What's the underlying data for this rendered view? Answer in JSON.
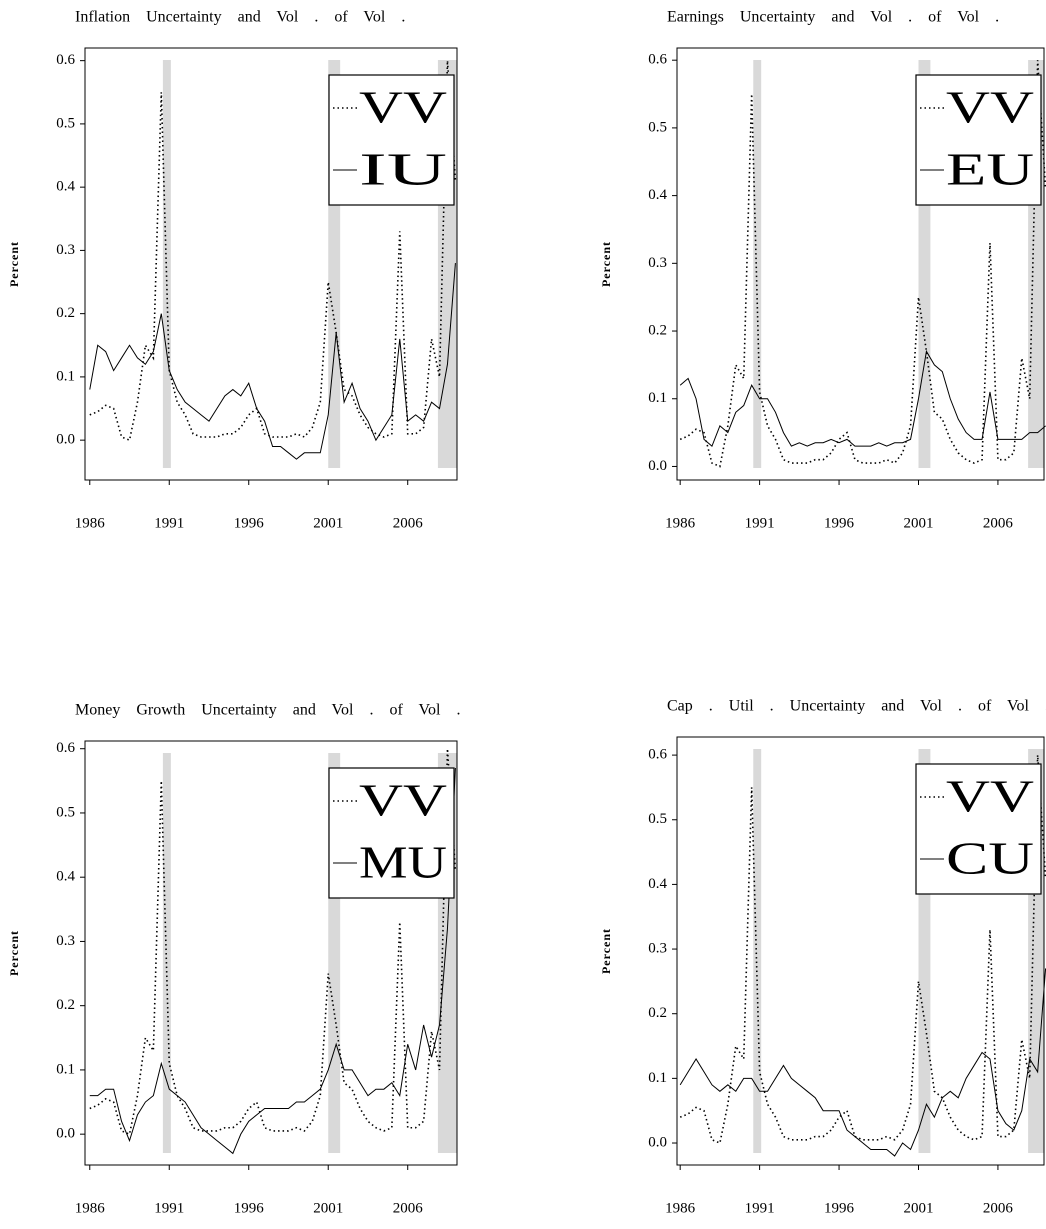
{
  "chart_data": [
    {
      "type": "line",
      "title": "Inflation Uncertainty and Vol . of Vol .",
      "ylabel": "Percent",
      "legend": "upper right",
      "shade_color": "#d9d9d9",
      "xlim": [
        1985.7,
        2009.1
      ],
      "ylim": [
        -0.063,
        0.62
      ],
      "xticks": [
        1986,
        1991,
        1996,
        2001,
        2006
      ],
      "yticks": [
        {
          "value": 0,
          "label": "0.0"
        },
        0.1,
        0.2,
        0.3,
        0.4,
        0.5,
        0.6
      ],
      "shaded_regions": [
        {
          "start": 1990.6,
          "end": 1991.1
        },
        {
          "start": 2001.0,
          "end": 2001.75
        },
        {
          "start": 2007.9,
          "end": 2009.1
        }
      ],
      "x": [
        1986,
        1986.5,
        1987,
        1987.5,
        1988,
        1988.5,
        1989,
        1989.5,
        1990,
        1990.5,
        1991,
        1991.5,
        1992,
        1992.5,
        1993,
        1993.5,
        1994,
        1994.5,
        1995,
        1995.5,
        1996,
        1996.5,
        1997,
        1997.5,
        1998,
        1998.5,
        1999,
        1999.5,
        2000,
        2000.5,
        2001,
        2001.5,
        2002,
        2002.5,
        2003,
        2003.5,
        2004,
        2004.5,
        2005,
        2005.5,
        2006,
        2006.5,
        2007,
        2007.5,
        2008,
        2008.5,
        2009
      ],
      "series": [
        {
          "name": "VV",
          "color": "#000000",
          "style": "dotted",
          "values": [
            0.04,
            0.045,
            0.055,
            0.05,
            0.005,
            0.0,
            0.06,
            0.15,
            0.13,
            0.55,
            0.11,
            0.06,
            0.04,
            0.01,
            0.005,
            0.005,
            0.005,
            0.01,
            0.01,
            0.02,
            0.04,
            0.05,
            0.01,
            0.005,
            0.005,
            0.005,
            0.01,
            0.005,
            0.02,
            0.06,
            0.25,
            0.17,
            0.08,
            0.07,
            0.04,
            0.02,
            0.01,
            0.005,
            0.01,
            0.33,
            0.01,
            0.01,
            0.02,
            0.16,
            0.1,
            0.6,
            0.41
          ]
        },
        {
          "name": "IU",
          "color": "#000000",
          "style": "solid",
          "values": [
            0.08,
            0.15,
            0.14,
            0.11,
            0.13,
            0.15,
            0.13,
            0.12,
            0.14,
            0.2,
            0.11,
            0.08,
            0.06,
            0.05,
            0.04,
            0.03,
            0.05,
            0.07,
            0.08,
            0.07,
            0.09,
            0.05,
            0.03,
            -0.01,
            -0.01,
            -0.02,
            -0.03,
            -0.02,
            -0.02,
            -0.02,
            0.04,
            0.17,
            0.06,
            0.09,
            0.05,
            0.03,
            0.0,
            0.02,
            0.04,
            0.16,
            0.03,
            0.04,
            0.03,
            0.06,
            0.05,
            0.12,
            0.28
          ]
        }
      ]
    },
    {
      "type": "line",
      "title": "Earnings Uncertainty and Vol . of Vol .",
      "ylabel": "Percent",
      "legend": "upper right",
      "shade_color": "#d9d9d9",
      "xlim": [
        1985.8,
        2008.9
      ],
      "ylim": [
        -0.02,
        0.618
      ],
      "xticks": [
        1986,
        1991,
        1996,
        2001,
        2006
      ],
      "yticks": [
        {
          "value": 0,
          "label": "0.0"
        },
        0.1,
        0.2,
        0.3,
        0.4,
        0.5,
        0.6
      ],
      "shaded_regions": [
        {
          "start": 1990.6,
          "end": 1991.1
        },
        {
          "start": 2001.0,
          "end": 2001.75
        },
        {
          "start": 2007.9,
          "end": 2008.9
        }
      ],
      "x": [
        1986,
        1986.5,
        1987,
        1987.5,
        1988,
        1988.5,
        1989,
        1989.5,
        1990,
        1990.5,
        1991,
        1991.5,
        1992,
        1992.5,
        1993,
        1993.5,
        1994,
        1994.5,
        1995,
        1995.5,
        1996,
        1996.5,
        1997,
        1997.5,
        1998,
        1998.5,
        1999,
        1999.5,
        2000,
        2000.5,
        2001,
        2001.5,
        2002,
        2002.5,
        2003,
        2003.5,
        2004,
        2004.5,
        2005,
        2005.5,
        2006,
        2006.5,
        2007,
        2007.5,
        2008,
        2008.5,
        2009
      ],
      "series": [
        {
          "name": "VV",
          "color": "#000000",
          "style": "dotted",
          "values": [
            0.04,
            0.045,
            0.055,
            0.05,
            0.005,
            0.0,
            0.06,
            0.15,
            0.13,
            0.55,
            0.11,
            0.06,
            0.04,
            0.01,
            0.005,
            0.005,
            0.005,
            0.01,
            0.01,
            0.02,
            0.04,
            0.05,
            0.01,
            0.005,
            0.005,
            0.005,
            0.01,
            0.005,
            0.02,
            0.06,
            0.25,
            0.17,
            0.08,
            0.07,
            0.04,
            0.02,
            0.01,
            0.005,
            0.01,
            0.33,
            0.01,
            0.01,
            0.02,
            0.16,
            0.1,
            0.6,
            0.41
          ]
        },
        {
          "name": "EU",
          "color": "#000000",
          "style": "solid",
          "values": [
            0.12,
            0.13,
            0.1,
            0.04,
            0.03,
            0.06,
            0.05,
            0.08,
            0.09,
            0.12,
            0.1,
            0.1,
            0.08,
            0.05,
            0.03,
            0.035,
            0.03,
            0.035,
            0.035,
            0.04,
            0.035,
            0.04,
            0.03,
            0.03,
            0.03,
            0.035,
            0.03,
            0.035,
            0.035,
            0.04,
            0.1,
            0.17,
            0.15,
            0.14,
            0.1,
            0.07,
            0.05,
            0.04,
            0.04,
            0.11,
            0.04,
            0.04,
            0.04,
            0.04,
            0.05,
            0.05,
            0.06
          ]
        }
      ]
    },
    {
      "type": "line",
      "title": "Money Growth Uncertainty and Vol . of Vol .",
      "ylabel": "Percent",
      "legend": "upper right",
      "shade_color": "#d9d9d9",
      "xlim": [
        1985.7,
        2009.1
      ],
      "ylim": [
        -0.048,
        0.612
      ],
      "xticks": [
        1986,
        1991,
        1996,
        2001,
        2006
      ],
      "yticks": [
        {
          "value": 0,
          "label": "0.0"
        },
        0.1,
        0.2,
        0.3,
        0.4,
        0.5,
        0.6
      ],
      "shaded_regions": [
        {
          "start": 1990.6,
          "end": 1991.1
        },
        {
          "start": 2001.0,
          "end": 2001.75
        },
        {
          "start": 2007.9,
          "end": 2009.1
        }
      ],
      "x": [
        1986,
        1986.5,
        1987,
        1987.5,
        1988,
        1988.5,
        1989,
        1989.5,
        1990,
        1990.5,
        1991,
        1991.5,
        1992,
        1992.5,
        1993,
        1993.5,
        1994,
        1994.5,
        1995,
        1995.5,
        1996,
        1996.5,
        1997,
        1997.5,
        1998,
        1998.5,
        1999,
        1999.5,
        2000,
        2000.5,
        2001,
        2001.5,
        2002,
        2002.5,
        2003,
        2003.5,
        2004,
        2004.5,
        2005,
        2005.5,
        2006,
        2006.5,
        2007,
        2007.5,
        2008,
        2008.5,
        2009
      ],
      "series": [
        {
          "name": "VV",
          "color": "#000000",
          "style": "dotted",
          "values": [
            0.04,
            0.045,
            0.055,
            0.05,
            0.005,
            0.0,
            0.06,
            0.15,
            0.13,
            0.55,
            0.11,
            0.06,
            0.04,
            0.01,
            0.005,
            0.005,
            0.005,
            0.01,
            0.01,
            0.02,
            0.04,
            0.05,
            0.01,
            0.005,
            0.005,
            0.005,
            0.01,
            0.005,
            0.02,
            0.06,
            0.25,
            0.17,
            0.08,
            0.07,
            0.04,
            0.02,
            0.01,
            0.005,
            0.01,
            0.33,
            0.01,
            0.01,
            0.02,
            0.16,
            0.1,
            0.6,
            0.41
          ]
        },
        {
          "name": "MU",
          "color": "#000000",
          "style": "solid",
          "values": [
            0.06,
            0.06,
            0.07,
            0.07,
            0.02,
            -0.01,
            0.03,
            0.05,
            0.06,
            0.11,
            0.07,
            0.06,
            0.05,
            0.03,
            0.01,
            0.0,
            -0.01,
            -0.02,
            -0.03,
            0.0,
            0.02,
            0.03,
            0.04,
            0.04,
            0.04,
            0.04,
            0.05,
            0.05,
            0.06,
            0.07,
            0.1,
            0.14,
            0.1,
            0.1,
            0.08,
            0.06,
            0.07,
            0.07,
            0.08,
            0.06,
            0.14,
            0.1,
            0.17,
            0.12,
            0.17,
            0.32,
            0.57
          ]
        }
      ]
    },
    {
      "type": "line",
      "title": "Cap . Util . Uncertainty and Vol . of Vol .",
      "ylabel": "Percent",
      "legend": "upper right",
      "shade_color": "#d9d9d9",
      "xlim": [
        1985.8,
        2008.9
      ],
      "ylim": [
        -0.034,
        0.628
      ],
      "xticks": [
        1986,
        1991,
        1996,
        2001,
        2006
      ],
      "yticks": [
        {
          "value": 0,
          "label": "0.0"
        },
        0.1,
        0.2,
        0.3,
        0.4,
        0.5,
        0.6
      ],
      "shaded_regions": [
        {
          "start": 1990.6,
          "end": 1991.1
        },
        {
          "start": 2001.0,
          "end": 2001.75
        },
        {
          "start": 2007.9,
          "end": 2008.9
        }
      ],
      "x": [
        1986,
        1986.5,
        1987,
        1987.5,
        1988,
        1988.5,
        1989,
        1989.5,
        1990,
        1990.5,
        1991,
        1991.5,
        1992,
        1992.5,
        1993,
        1993.5,
        1994,
        1994.5,
        1995,
        1995.5,
        1996,
        1996.5,
        1997,
        1997.5,
        1998,
        1998.5,
        1999,
        1999.5,
        2000,
        2000.5,
        2001,
        2001.5,
        2002,
        2002.5,
        2003,
        2003.5,
        2004,
        2004.5,
        2005,
        2005.5,
        2006,
        2006.5,
        2007,
        2007.5,
        2008,
        2008.5,
        2009
      ],
      "series": [
        {
          "name": "VV",
          "color": "#000000",
          "style": "dotted",
          "values": [
            0.04,
            0.045,
            0.055,
            0.05,
            0.005,
            0.0,
            0.06,
            0.15,
            0.13,
            0.55,
            0.11,
            0.06,
            0.04,
            0.01,
            0.005,
            0.005,
            0.005,
            0.01,
            0.01,
            0.02,
            0.04,
            0.05,
            0.01,
            0.005,
            0.005,
            0.005,
            0.01,
            0.005,
            0.02,
            0.06,
            0.25,
            0.17,
            0.08,
            0.07,
            0.04,
            0.02,
            0.01,
            0.005,
            0.01,
            0.33,
            0.01,
            0.01,
            0.02,
            0.16,
            0.1,
            0.6,
            0.41
          ]
        },
        {
          "name": "CU",
          "color": "#000000",
          "style": "solid",
          "values": [
            0.09,
            0.11,
            0.13,
            0.11,
            0.09,
            0.08,
            0.09,
            0.08,
            0.1,
            0.1,
            0.08,
            0.08,
            0.1,
            0.12,
            0.1,
            0.09,
            0.08,
            0.07,
            0.05,
            0.05,
            0.05,
            0.02,
            0.01,
            0.0,
            -0.01,
            -0.01,
            -0.01,
            -0.02,
            0.0,
            -0.01,
            0.02,
            0.06,
            0.04,
            0.07,
            0.08,
            0.07,
            0.1,
            0.12,
            0.14,
            0.13,
            0.05,
            0.03,
            0.02,
            0.05,
            0.13,
            0.11,
            0.27
          ]
        }
      ]
    }
  ]
}
